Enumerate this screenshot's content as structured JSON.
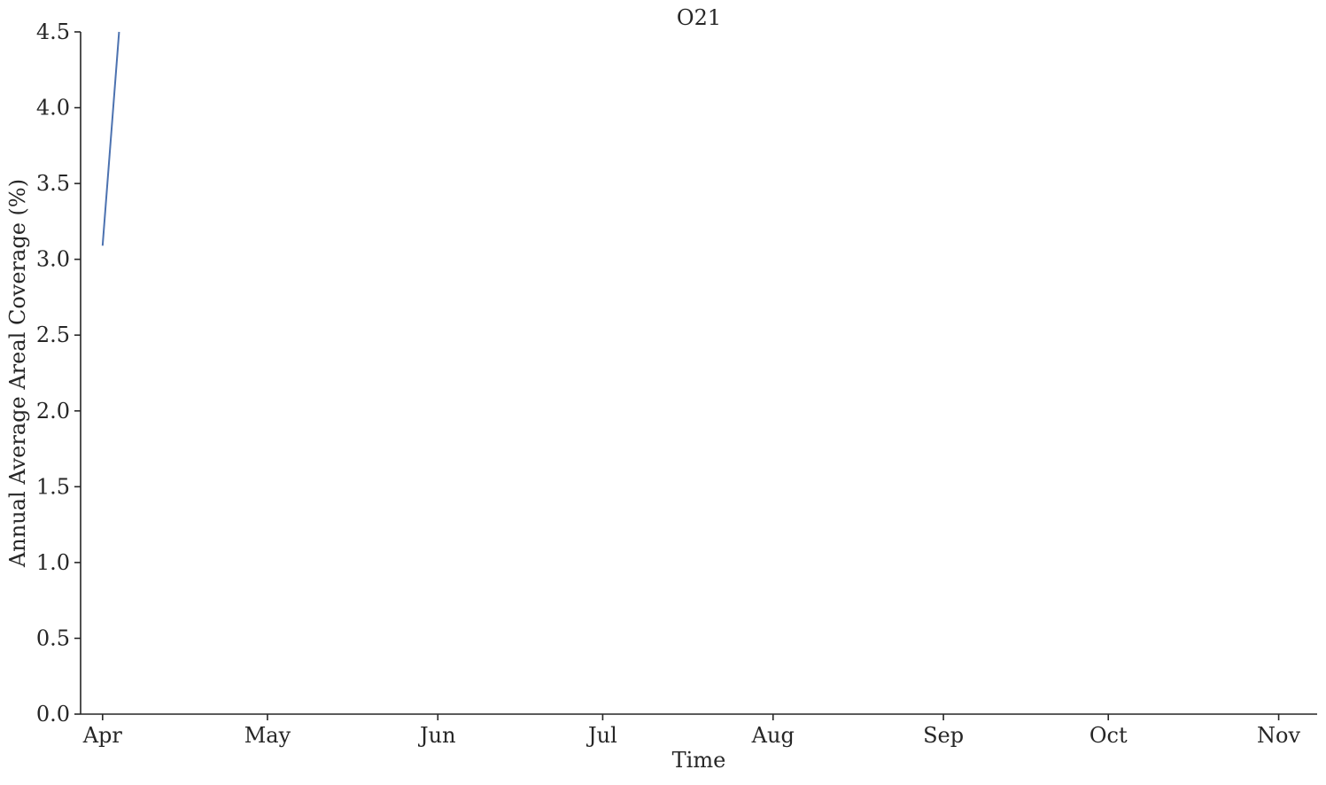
{
  "chart_data": {
    "type": "line",
    "title": "O21",
    "xlabel": "Time",
    "ylabel": "Annual Average Areal Coverage (%)",
    "x_axis": {
      "kind": "date",
      "range": [
        "2023-03-28",
        "2023-11-08"
      ],
      "ticks": [
        {
          "date": "2023-04-01",
          "label": "Apr"
        },
        {
          "date": "2023-05-01",
          "label": "May"
        },
        {
          "date": "2023-06-01",
          "label": "Jun"
        },
        {
          "date": "2023-07-01",
          "label": "Jul"
        },
        {
          "date": "2023-08-01",
          "label": "Aug"
        },
        {
          "date": "2023-09-01",
          "label": "Sep"
        },
        {
          "date": "2023-10-01",
          "label": "Oct"
        },
        {
          "date": "2023-11-01",
          "label": "Nov"
        }
      ]
    },
    "y_axis": {
      "range": [
        0,
        4.5
      ],
      "ticks": [
        "0.0",
        "0.5",
        "1.0",
        "1.5",
        "2.0",
        "2.5",
        "3.0",
        "3.5",
        "4.0",
        "4.5"
      ]
    },
    "grid": false,
    "series": [
      {
        "color": "#4c72b0",
        "points": [
          {
            "x": "2023-04-01",
            "y": 3.09
          },
          {
            "x": "2023-04-04",
            "y": 4.5
          }
        ]
      }
    ]
  }
}
